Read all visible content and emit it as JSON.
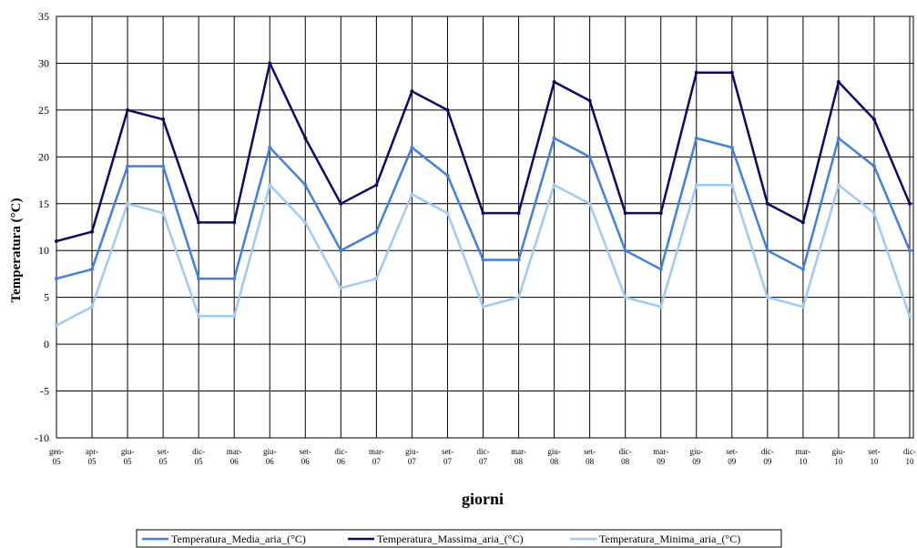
{
  "chart_data": {
    "type": "line",
    "xlabel": "giorni",
    "ylabel": "Temperatura (°C)",
    "ylim": [
      -10,
      35
    ],
    "yticks": [
      -10,
      -5,
      0,
      5,
      10,
      15,
      20,
      25,
      30,
      35
    ],
    "grid": true,
    "legend_position": "bottom",
    "x_tick_labels": [
      [
        "gen-",
        "05"
      ],
      [
        "apr-",
        "05"
      ],
      [
        "giu-",
        "05"
      ],
      [
        "set-",
        "05"
      ],
      [
        "dic-",
        "05"
      ],
      [
        "mar-",
        "06"
      ],
      [
        "giu-",
        "06"
      ],
      [
        "set-",
        "06"
      ],
      [
        "dic-",
        "06"
      ],
      [
        "mar-",
        "07"
      ],
      [
        "giu-",
        "07"
      ],
      [
        "set-",
        "07"
      ],
      [
        "dic-",
        "07"
      ],
      [
        "mar-",
        "08"
      ],
      [
        "giu-",
        "08"
      ],
      [
        "set-",
        "08"
      ],
      [
        "dic-",
        "08"
      ],
      [
        "mar-",
        "09"
      ],
      [
        "giu-",
        "09"
      ],
      [
        "set-",
        "09"
      ],
      [
        "dic-",
        "09"
      ],
      [
        "mar-",
        "10"
      ],
      [
        "giu-",
        "10"
      ],
      [
        "set-",
        "10"
      ],
      [
        "dic-",
        "10"
      ]
    ],
    "series": [
      {
        "name": "Temperatura_Media_aria_(°C)",
        "color": "#3f7fe8",
        "x": [
          "gen-05",
          "apr-05",
          "giu-05",
          "set-05",
          "dic-05",
          "mar-06",
          "giu-06",
          "set-06",
          "dic-06",
          "mar-07",
          "giu-07",
          "set-07",
          "dic-07",
          "mar-08",
          "giu-08",
          "set-08",
          "dic-08",
          "mar-09",
          "giu-09",
          "set-09",
          "dic-09",
          "mar-10",
          "giu-10",
          "set-10",
          "dic-10"
        ],
        "values": [
          7,
          8,
          19,
          19,
          7,
          7,
          21,
          17,
          10,
          12,
          21,
          18,
          9,
          9,
          22,
          20,
          10,
          8,
          22,
          21,
          10,
          8,
          22,
          19,
          10
        ]
      },
      {
        "name": "Temperatura_Massima_aria_(°C)",
        "color": "#0a0a6e",
        "x": [
          "gen-05",
          "apr-05",
          "giu-05",
          "set-05",
          "dic-05",
          "mar-06",
          "giu-06",
          "set-06",
          "dic-06",
          "mar-07",
          "giu-07",
          "set-07",
          "dic-07",
          "mar-08",
          "giu-08",
          "set-08",
          "dic-08",
          "mar-09",
          "giu-09",
          "set-09",
          "dic-09",
          "mar-10",
          "giu-10",
          "set-10",
          "dic-10"
        ],
        "values": [
          11,
          12,
          25,
          24,
          13,
          13,
          30,
          22,
          15,
          17,
          27,
          25,
          14,
          14,
          28,
          26,
          14,
          14,
          29,
          29,
          15,
          13,
          28,
          24,
          15
        ]
      },
      {
        "name": "Temperatura_Minima_aria_(°C)",
        "color": "#9fcaf5",
        "x": [
          "gen-05",
          "apr-05",
          "giu-05",
          "set-05",
          "dic-05",
          "mar-06",
          "giu-06",
          "set-06",
          "dic-06",
          "mar-07",
          "giu-07",
          "set-07",
          "dic-07",
          "mar-08",
          "giu-08",
          "set-08",
          "dic-08",
          "mar-09",
          "giu-09",
          "set-09",
          "dic-09",
          "mar-10",
          "giu-10",
          "set-10",
          "dic-10"
        ],
        "values": [
          2,
          4,
          15,
          14,
          3,
          3,
          17,
          13,
          6,
          7,
          16,
          14,
          4,
          5,
          17,
          15,
          5,
          4,
          17,
          17,
          5,
          4,
          17,
          14,
          3
        ]
      }
    ]
  }
}
